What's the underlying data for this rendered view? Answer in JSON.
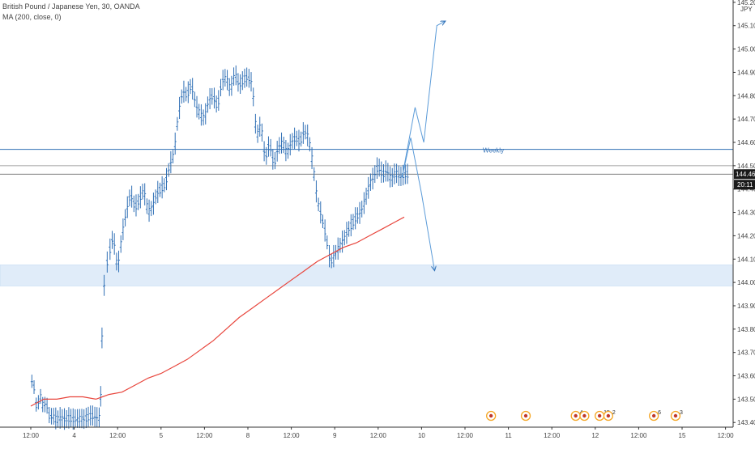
{
  "chart_data": {
    "type": "candlestick",
    "title": "British Pound / Japanese Yen, 30, OANDA",
    "indicator": "MA (200, close, 0)",
    "currency": "JPY",
    "ylim": [
      143.38,
      145.21
    ],
    "price_axis": {
      "ticks": [
        143.4,
        143.5,
        143.6,
        143.7,
        143.8,
        143.9,
        144.0,
        144.1,
        144.2,
        144.3,
        144.4,
        144.5,
        144.6,
        144.7,
        144.8,
        144.9,
        145.0,
        145.1,
        145.2
      ],
      "tick_labels": [
        "143.400",
        "143.500",
        "143.600",
        "143.700",
        "143.800",
        "143.900",
        "144.000",
        "144.100",
        "144.200",
        "144.300",
        "144.400",
        "144.500",
        "144.600",
        "144.700",
        "144.800",
        "144.900",
        "145.000",
        "145.100",
        "145.200"
      ]
    },
    "time_axis": {
      "labels": [
        "12:00",
        "4",
        "12:00",
        "5",
        "12:00",
        "8",
        "12:00",
        "9",
        "12:00",
        "10",
        "12:00",
        "11",
        "12:00",
        "12",
        "12:00",
        "15",
        "12:00"
      ],
      "positions": [
        0,
        1,
        2,
        3,
        4,
        5,
        6,
        7,
        8,
        9,
        10,
        11,
        12,
        13,
        14,
        15,
        16
      ]
    },
    "current_price": {
      "value": 144.464,
      "label": "144.464",
      "countdown": "20:11"
    },
    "horizontal_lines": [
      {
        "value": 144.57,
        "label": "Weekly",
        "color": "#2f6fb5"
      },
      {
        "value": 144.5,
        "label": "",
        "color": "#888888"
      },
      {
        "value": 144.464,
        "label": "",
        "color": "#555555"
      }
    ],
    "zone": {
      "from": 143.985,
      "to": 144.075,
      "color": "#d6e6f7"
    },
    "price_path": {
      "x": [
        0,
        0.05,
        0.1,
        0.15,
        0.2,
        0.25,
        0.3,
        0.35,
        0.4,
        0.45,
        0.5,
        0.6,
        0.7,
        0.8,
        0.9,
        1.0,
        1.05,
        1.1,
        1.15,
        1.2,
        1.3,
        1.4,
        1.5,
        1.6,
        1.62,
        1.66,
        1.72,
        1.8,
        1.9,
        2.0,
        2.1,
        2.2,
        2.3,
        2.4,
        2.5,
        2.6,
        2.7,
        2.8,
        2.9,
        3.0,
        3.1,
        3.2,
        3.3,
        3.4,
        3.5,
        3.6,
        3.7,
        3.8,
        3.9,
        4.0,
        4.1,
        4.2,
        4.3,
        4.4,
        4.5,
        4.6,
        4.7,
        4.8,
        4.9,
        5.0,
        5.1,
        5.2,
        5.3,
        5.4,
        5.5,
        5.6,
        5.7,
        5.8,
        5.9,
        6.0,
        6.1,
        6.2,
        6.3,
        6.4,
        6.5,
        6.6,
        6.7,
        6.8,
        6.9,
        7.0,
        7.1,
        7.2,
        7.3,
        7.4,
        7.5,
        7.6,
        7.7,
        7.8,
        7.9,
        8.0,
        8.1,
        8.2,
        8.3,
        8.4,
        8.5,
        8.6,
        8.7
      ],
      "close": [
        143.55,
        143.6,
        143.5,
        143.45,
        143.52,
        143.5,
        143.45,
        143.5,
        143.44,
        143.42,
        143.43,
        143.41,
        143.42,
        143.41,
        143.42,
        143.41,
        143.42,
        143.41,
        143.42,
        143.41,
        143.42,
        143.43,
        143.42,
        143.42,
        143.6,
        143.92,
        144.05,
        144.12,
        144.2,
        144.05,
        144.2,
        144.3,
        144.38,
        144.32,
        144.35,
        144.4,
        144.3,
        144.32,
        144.38,
        144.4,
        144.42,
        144.5,
        144.55,
        144.72,
        144.82,
        144.8,
        144.85,
        144.76,
        144.72,
        144.7,
        144.78,
        144.8,
        144.75,
        144.86,
        144.88,
        144.82,
        144.9,
        144.84,
        144.87,
        144.88,
        144.85,
        144.62,
        144.68,
        144.52,
        144.6,
        144.5,
        144.58,
        144.6,
        144.55,
        144.6,
        144.62,
        144.6,
        144.65,
        144.62,
        144.5,
        144.35,
        144.28,
        144.2,
        144.08,
        144.12,
        144.15,
        144.18,
        144.22,
        144.25,
        144.28,
        144.3,
        144.35,
        144.42,
        144.45,
        144.5,
        144.46,
        144.48,
        144.44,
        144.47,
        144.45,
        144.46,
        144.464
      ]
    },
    "ma200": {
      "x": [
        0,
        0.3,
        0.6,
        0.9,
        1.2,
        1.5,
        1.8,
        2.1,
        2.4,
        2.7,
        3.0,
        3.3,
        3.6,
        3.9,
        4.2,
        4.5,
        4.8,
        5.1,
        5.4,
        5.7,
        6.0,
        6.3,
        6.6,
        6.9,
        7.2,
        7.5,
        7.8,
        8.1,
        8.4,
        8.6
      ],
      "values": [
        143.47,
        143.5,
        143.5,
        143.51,
        143.51,
        143.5,
        143.52,
        143.53,
        143.56,
        143.59,
        143.61,
        143.64,
        143.67,
        143.71,
        143.75,
        143.8,
        143.85,
        143.89,
        143.93,
        143.97,
        144.01,
        144.05,
        144.09,
        144.12,
        144.15,
        144.17,
        144.2,
        144.23,
        144.26,
        144.28
      ]
    },
    "projections": [
      {
        "x": [
          8.55,
          8.85,
          9.05,
          9.35,
          9.55
        ],
        "y": [
          144.45,
          144.75,
          144.6,
          145.1,
          145.12
        ]
      },
      {
        "x": [
          8.55,
          8.75,
          9.0,
          9.3
        ],
        "y": [
          144.45,
          144.62,
          144.38,
          144.05
        ]
      }
    ],
    "event_markers": [
      {
        "x": 10.6,
        "label": ""
      },
      {
        "x": 11.4,
        "label": ""
      },
      {
        "x": 12.55,
        "label": "4"
      },
      {
        "x": 12.75,
        "label": ""
      },
      {
        "x": 13.1,
        "label": "15"
      },
      {
        "x": 13.3,
        "label": "2"
      },
      {
        "x": 14.35,
        "label": "6"
      },
      {
        "x": 14.85,
        "label": "3"
      }
    ],
    "colors": {
      "candle": "#2f6fb5",
      "ma": "#e8453c",
      "line": "#2f6fb5",
      "marker": "#f5a623",
      "axis_text": "#444444",
      "price_tag": "#1a1a1a"
    }
  }
}
